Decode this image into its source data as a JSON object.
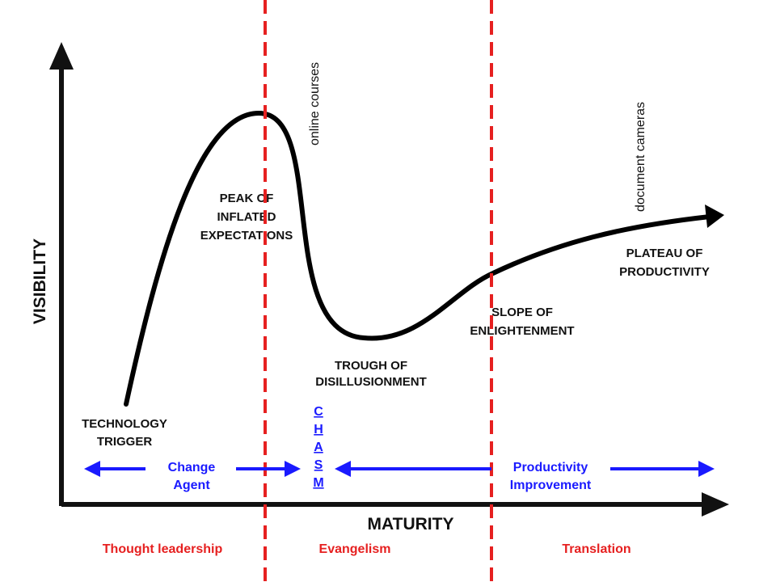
{
  "axes": {
    "y_label": "VISIBILITY",
    "x_label": "MATURITY"
  },
  "phases": {
    "trigger": [
      "TECHNOLOGY",
      "TRIGGER"
    ],
    "peak": [
      "PEAK OF",
      "INFLATED",
      "EXPECTATIONS"
    ],
    "trough": [
      "TROUGH OF",
      "DISILLUSIONMENT"
    ],
    "slope": [
      "SLOPE OF",
      "ENLIGHTENMENT"
    ],
    "plateau": [
      "PLATEAU OF",
      "PRODUCTIVITY"
    ]
  },
  "annotations": {
    "online_courses": "online courses",
    "document_cameras": "document cameras"
  },
  "arrows": {
    "change_agent": [
      "Change",
      "Agent"
    ],
    "chasm": [
      "C",
      "H",
      "A",
      "S",
      "M"
    ],
    "productivity": [
      "Productivity",
      "Improvement"
    ]
  },
  "bottom_labels": {
    "left": "Thought leadership",
    "middle": "Evangelism",
    "right": "Translation"
  },
  "colors": {
    "curve": "#000000",
    "divider": "#e62020",
    "arrows": "#1a1aff"
  }
}
